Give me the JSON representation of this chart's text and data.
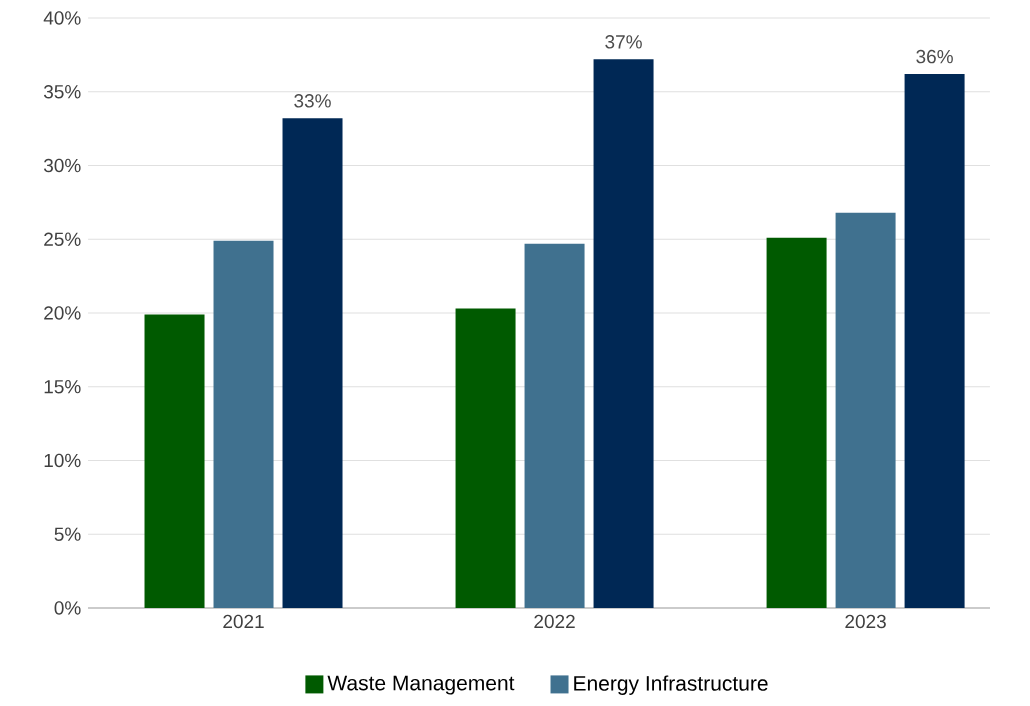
{
  "chart_data": {
    "type": "bar",
    "categories": [
      "2021",
      "2022",
      "2023"
    ],
    "series": [
      {
        "name": "Waste Management",
        "color": "#005a00",
        "values": [
          19.9,
          20.3,
          25.1
        ]
      },
      {
        "name": "Energy Infrastructure",
        "color": "#40718f",
        "values": [
          24.9,
          24.7,
          26.8
        ]
      },
      {
        "color": "#002855",
        "values": [
          33.2,
          37.2,
          36.2
        ],
        "value_labels": [
          "33%",
          "37%",
          "36%"
        ]
      }
    ],
    "ylim": [
      0,
      40
    ],
    "yticks": [
      {
        "value": 0,
        "label": "0%"
      },
      {
        "value": 5,
        "label": "5%"
      },
      {
        "value": 10,
        "label": "10%"
      },
      {
        "value": 15,
        "label": "15%"
      },
      {
        "value": 20,
        "label": "20%"
      },
      {
        "value": 25,
        "label": "25%"
      },
      {
        "value": 30,
        "label": "30%"
      },
      {
        "value": 35,
        "label": "35%"
      },
      {
        "value": 40,
        "label": "40%"
      }
    ],
    "grid": "y",
    "legend": "bottom"
  }
}
